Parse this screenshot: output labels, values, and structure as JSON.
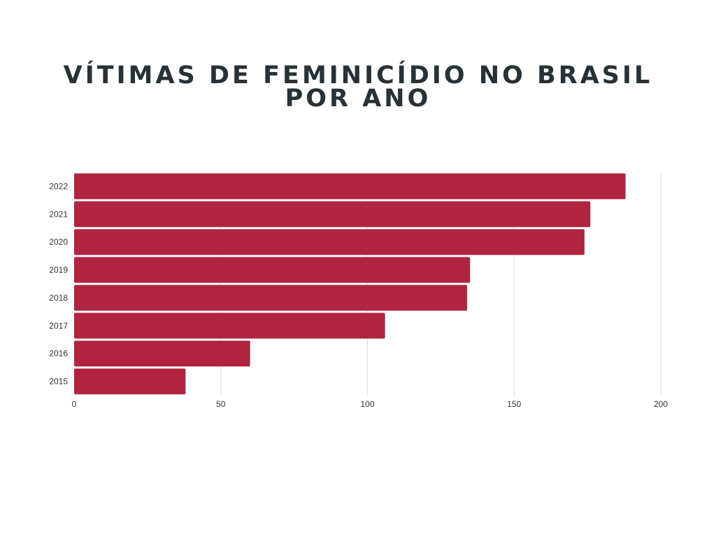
{
  "chart_data": {
    "type": "bar",
    "orientation": "horizontal",
    "title": "VÍTIMAS DE FEMINICÍDIO NO BRASIL POR ANO",
    "categories": [
      "2022",
      "2021",
      "2020",
      "2019",
      "2018",
      "2017",
      "2016",
      "2015"
    ],
    "values": [
      188,
      176,
      174,
      135,
      134,
      106,
      60,
      38
    ],
    "xlim": [
      0,
      200
    ],
    "xticks": [
      "0",
      "50",
      "100",
      "150",
      "200"
    ],
    "xlabel": "",
    "ylabel": "",
    "grid": true,
    "legend": "none",
    "bar_color": "#B0243F",
    "title_color": "#263238"
  }
}
